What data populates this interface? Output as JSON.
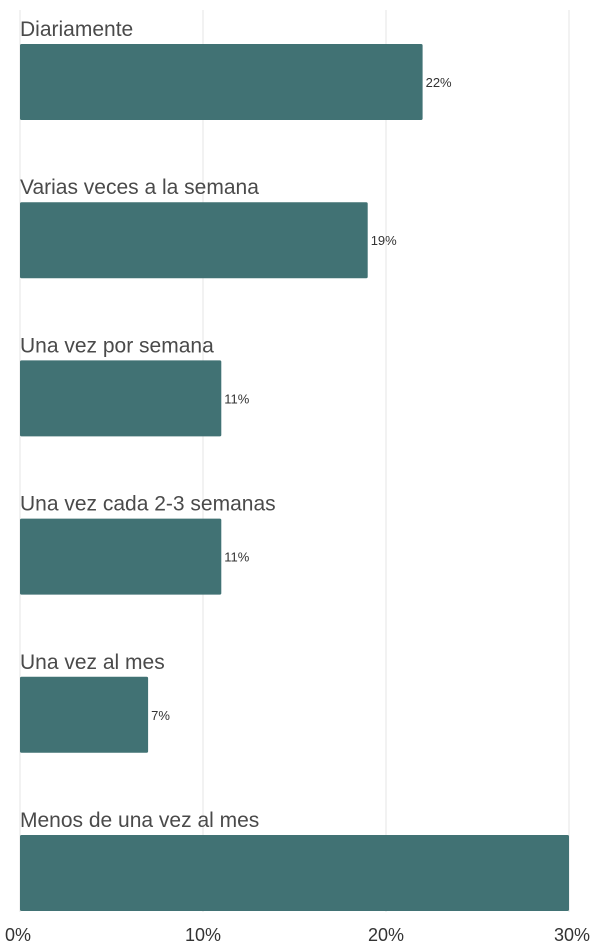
{
  "colors": {
    "bar": "#417274"
  },
  "chart_data": {
    "type": "bar",
    "orientation": "horizontal",
    "categories": [
      "Diariamente",
      "Varias veces a la semana",
      "Una vez por semana",
      "Una vez cada 2-3 semanas",
      "Una vez al mes",
      "Menos de una vez al mes"
    ],
    "values": [
      22,
      19,
      11,
      11,
      7,
      30
    ],
    "value_labels": [
      "22%",
      "19%",
      "11%",
      "11%",
      "7%",
      ""
    ],
    "xlim": [
      0,
      30
    ],
    "x_ticks": [
      0,
      10,
      20,
      30
    ],
    "x_tick_labels": [
      "0%",
      "10%",
      "20%",
      "30%"
    ],
    "grid": true,
    "title": "",
    "xlabel": "",
    "ylabel": ""
  }
}
